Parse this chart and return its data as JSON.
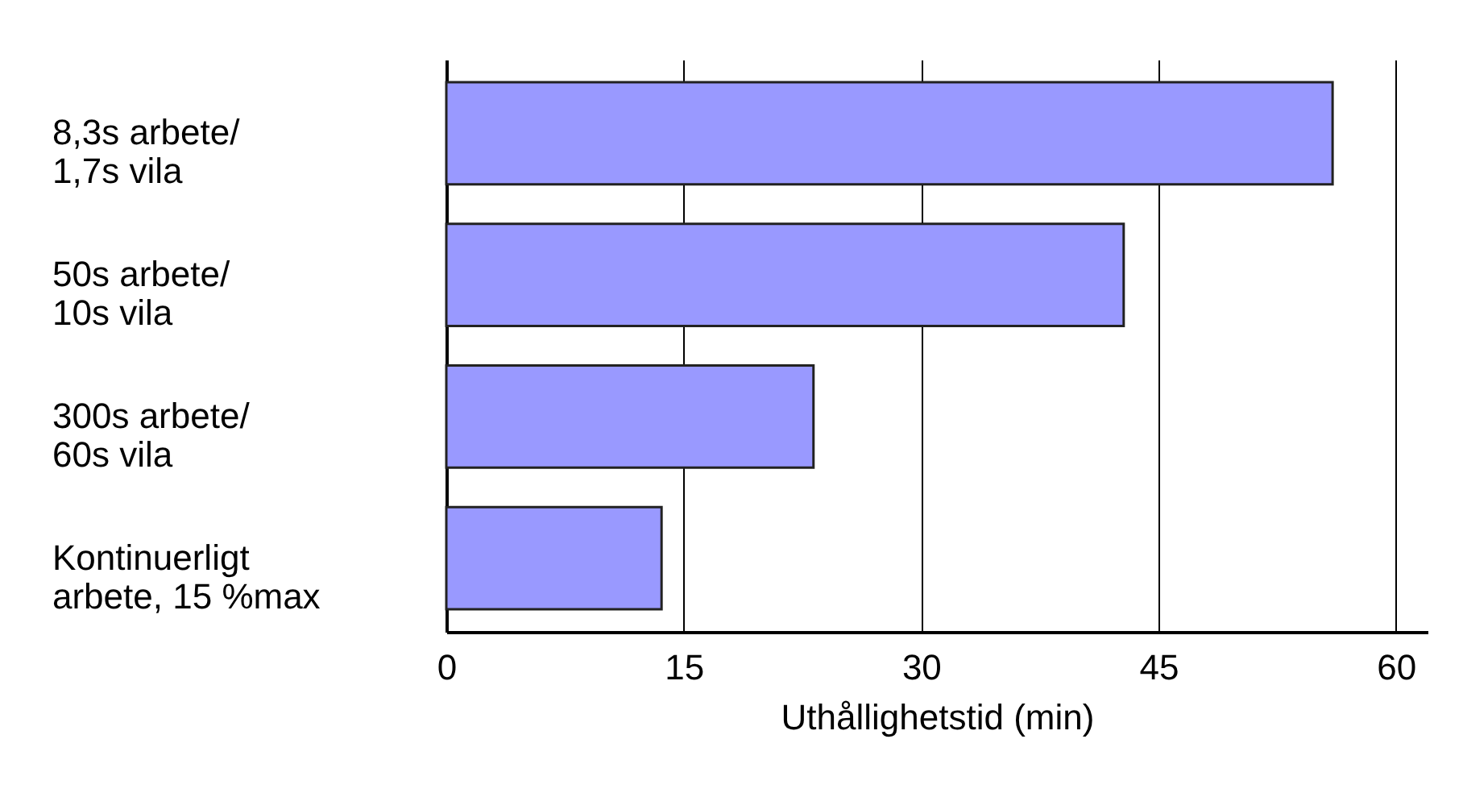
{
  "chart_data": {
    "type": "bar",
    "orientation": "horizontal",
    "xlabel": "Uthållighetstid (min)",
    "categories": [
      "8,3s arbete/\n1,7s vila",
      "50s arbete/\n10s vila",
      "300s arbete/\n60s vila",
      "Kontinuerligt\narbete, 15 %max"
    ],
    "values": [
      56,
      42.8,
      23.2,
      13.6
    ],
    "color": "#9999ff",
    "xlim": [
      0,
      62
    ],
    "xticks": [
      0,
      15,
      30,
      45,
      60
    ],
    "grid": "x"
  }
}
